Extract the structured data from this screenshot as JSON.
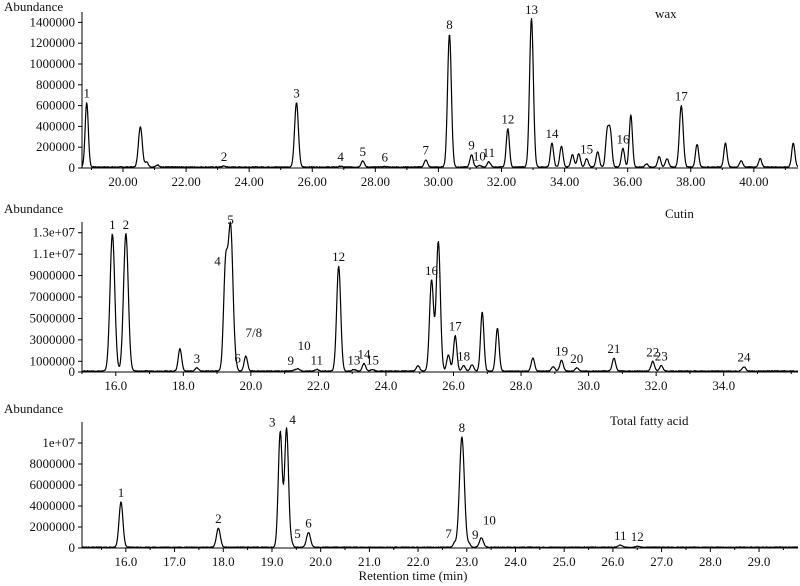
{
  "xlabel": "Retention time (min)",
  "chart_data": [
    {
      "type": "line",
      "title": "wax",
      "ylabel": "Abundance",
      "xlim": [
        18.7,
        41.4
      ],
      "ylim": [
        0,
        1500000
      ],
      "xticks": [
        "20.00",
        "22.00",
        "24.00",
        "26.00",
        "28.00",
        "30.00",
        "32.00",
        "34.00",
        "36.00",
        "38.00",
        "40.00"
      ],
      "yticks": [
        "0",
        "200000",
        "400000",
        "600000",
        "800000",
        "1000000",
        "1200000",
        "1400000"
      ],
      "peaks": [
        {
          "x": 18.85,
          "y": 620000,
          "w": 0.05,
          "label": "1"
        },
        {
          "x": 20.55,
          "y": 390000,
          "w": 0.06
        },
        {
          "x": 20.75,
          "y": 50000,
          "w": 0.05
        },
        {
          "x": 21.1,
          "y": 20000,
          "w": 0.05
        },
        {
          "x": 23.2,
          "y": 10000,
          "w": 0.05,
          "label": "2"
        },
        {
          "x": 25.5,
          "y": 620000,
          "w": 0.06,
          "label": "3"
        },
        {
          "x": 26.9,
          "y": 8000,
          "w": 0.05,
          "label": "4"
        },
        {
          "x": 27.6,
          "y": 60000,
          "w": 0.05,
          "label": "5"
        },
        {
          "x": 28.3,
          "y": 5000,
          "w": 0.05,
          "label": "6"
        },
        {
          "x": 29.6,
          "y": 70000,
          "w": 0.05,
          "label": "7"
        },
        {
          "x": 30.35,
          "y": 1280000,
          "w": 0.06,
          "label": "8"
        },
        {
          "x": 31.05,
          "y": 120000,
          "w": 0.05,
          "label": "9"
        },
        {
          "x": 31.3,
          "y": 15000,
          "w": 0.05,
          "label": "10"
        },
        {
          "x": 31.6,
          "y": 50000,
          "w": 0.05,
          "label": "11"
        },
        {
          "x": 32.2,
          "y": 370000,
          "w": 0.05,
          "label": "12"
        },
        {
          "x": 32.95,
          "y": 1430000,
          "w": 0.06,
          "label": "13"
        },
        {
          "x": 33.6,
          "y": 230000,
          "w": 0.05,
          "label": "14"
        },
        {
          "x": 33.9,
          "y": 200000,
          "w": 0.05
        },
        {
          "x": 34.25,
          "y": 120000,
          "w": 0.05
        },
        {
          "x": 34.45,
          "y": 130000,
          "w": 0.05
        },
        {
          "x": 34.7,
          "y": 80000,
          "w": 0.05,
          "label": "15"
        },
        {
          "x": 35.05,
          "y": 150000,
          "w": 0.05
        },
        {
          "x": 35.35,
          "y": 330000,
          "w": 0.05
        },
        {
          "x": 35.45,
          "y": 330000,
          "w": 0.05
        },
        {
          "x": 35.85,
          "y": 180000,
          "w": 0.05,
          "label": "16"
        },
        {
          "x": 36.1,
          "y": 500000,
          "w": 0.05
        },
        {
          "x": 36.6,
          "y": 30000,
          "w": 0.05
        },
        {
          "x": 37.0,
          "y": 100000,
          "w": 0.05
        },
        {
          "x": 37.25,
          "y": 80000,
          "w": 0.05
        },
        {
          "x": 37.7,
          "y": 590000,
          "w": 0.06,
          "label": "17"
        },
        {
          "x": 38.2,
          "y": 220000,
          "w": 0.05
        },
        {
          "x": 39.1,
          "y": 230000,
          "w": 0.05
        },
        {
          "x": 39.6,
          "y": 60000,
          "w": 0.05
        },
        {
          "x": 40.2,
          "y": 80000,
          "w": 0.05
        },
        {
          "x": 41.25,
          "y": 230000,
          "w": 0.05
        }
      ]
    },
    {
      "type": "line",
      "title": "Cutin",
      "ylabel": "Abundance",
      "xlim": [
        15.0,
        36.2
      ],
      "ylim": [
        0,
        14000000
      ],
      "xticks": [
        "16.0",
        "18.0",
        "20.0",
        "22.0",
        "24.0",
        "26.0",
        "28.0",
        "30.0",
        "32.0",
        "34.0"
      ],
      "yticks": [
        "0",
        "1000000",
        "3000000",
        "5000000",
        "7000000",
        "9000000",
        "1.1e+07",
        "1.3e+07"
      ],
      "peaks": [
        {
          "x": 15.9,
          "y": 12800000,
          "w": 0.07,
          "label": "1"
        },
        {
          "x": 16.3,
          "y": 12800000,
          "w": 0.07,
          "label": "2"
        },
        {
          "x": 17.9,
          "y": 2100000,
          "w": 0.05
        },
        {
          "x": 18.4,
          "y": 300000,
          "w": 0.05,
          "label": "3"
        },
        {
          "x": 19.25,
          "y": 9400000,
          "w": 0.06,
          "label": "4"
        },
        {
          "x": 19.4,
          "y": 13400000,
          "w": 0.07,
          "label": "5"
        },
        {
          "x": 19.55,
          "y": 350000,
          "w": 0.04,
          "label": "6"
        },
        {
          "x": 19.85,
          "y": 1400000,
          "w": 0.05,
          "label": "7/8"
        },
        {
          "x": 21.3,
          "y": 100000,
          "w": 0.05,
          "label": "9"
        },
        {
          "x": 21.4,
          "y": 200000,
          "w": 0.05,
          "label": "10"
        },
        {
          "x": 21.95,
          "y": 150000,
          "w": 0.05,
          "label": "11"
        },
        {
          "x": 22.6,
          "y": 9800000,
          "w": 0.06,
          "label": "12"
        },
        {
          "x": 23.05,
          "y": 150000,
          "w": 0.05,
          "label": "13"
        },
        {
          "x": 23.35,
          "y": 700000,
          "w": 0.05,
          "label": "14"
        },
        {
          "x": 23.6,
          "y": 150000,
          "w": 0.05,
          "label": "15"
        },
        {
          "x": 24.95,
          "y": 500000,
          "w": 0.05
        },
        {
          "x": 25.35,
          "y": 8500000,
          "w": 0.06,
          "label": "16"
        },
        {
          "x": 25.55,
          "y": 12100000,
          "w": 0.06
        },
        {
          "x": 25.85,
          "y": 1500000,
          "w": 0.05
        },
        {
          "x": 26.05,
          "y": 3300000,
          "w": 0.05,
          "label": "17"
        },
        {
          "x": 26.3,
          "y": 500000,
          "w": 0.05,
          "label": "18"
        },
        {
          "x": 26.55,
          "y": 600000,
          "w": 0.05
        },
        {
          "x": 26.85,
          "y": 5500000,
          "w": 0.05
        },
        {
          "x": 27.3,
          "y": 4000000,
          "w": 0.05
        },
        {
          "x": 28.35,
          "y": 1200000,
          "w": 0.05
        },
        {
          "x": 28.95,
          "y": 400000,
          "w": 0.05
        },
        {
          "x": 29.2,
          "y": 1000000,
          "w": 0.05,
          "label": "19"
        },
        {
          "x": 29.65,
          "y": 300000,
          "w": 0.05,
          "label": "20"
        },
        {
          "x": 30.75,
          "y": 1200000,
          "w": 0.05,
          "label": "21"
        },
        {
          "x": 31.9,
          "y": 900000,
          "w": 0.05,
          "label": "22"
        },
        {
          "x": 32.15,
          "y": 500000,
          "w": 0.05,
          "label": "23"
        },
        {
          "x": 34.6,
          "y": 400000,
          "w": 0.05,
          "label": "24"
        }
      ]
    },
    {
      "type": "line",
      "title": "Total fatty acid",
      "ylabel": "Abundance",
      "xlim": [
        15.1,
        29.8
      ],
      "ylim": [
        0,
        12000000
      ],
      "xticks": [
        "16.0",
        "17.0",
        "18.0",
        "19.0",
        "20.0",
        "21.0",
        "22.0",
        "23.0",
        "24.0",
        "25.0",
        "26.0",
        "27.0",
        "28.0",
        "29.0"
      ],
      "yticks": [
        "0",
        "2000000",
        "4000000",
        "6000000",
        "8000000",
        "1e+07"
      ],
      "peaks": [
        {
          "x": 15.9,
          "y": 4300000,
          "w": 0.04,
          "label": "1"
        },
        {
          "x": 17.9,
          "y": 1800000,
          "w": 0.04,
          "label": "2"
        },
        {
          "x": 19.17,
          "y": 11000000,
          "w": 0.04,
          "label": "3"
        },
        {
          "x": 19.3,
          "y": 11300000,
          "w": 0.04,
          "label": "4"
        },
        {
          "x": 19.4,
          "y": 400000,
          "w": 0.03,
          "label": "5"
        },
        {
          "x": 19.75,
          "y": 1400000,
          "w": 0.04,
          "label": "6"
        },
        {
          "x": 22.75,
          "y": 400000,
          "w": 0.03,
          "label": "7"
        },
        {
          "x": 22.9,
          "y": 10500000,
          "w": 0.05,
          "label": "8"
        },
        {
          "x": 23.05,
          "y": 300000,
          "w": 0.03,
          "label": "9"
        },
        {
          "x": 23.3,
          "y": 900000,
          "w": 0.04,
          "label": "10"
        },
        {
          "x": 26.15,
          "y": 200000,
          "w": 0.04,
          "label": "11"
        },
        {
          "x": 26.5,
          "y": 100000,
          "w": 0.04,
          "label": "12"
        }
      ]
    }
  ]
}
